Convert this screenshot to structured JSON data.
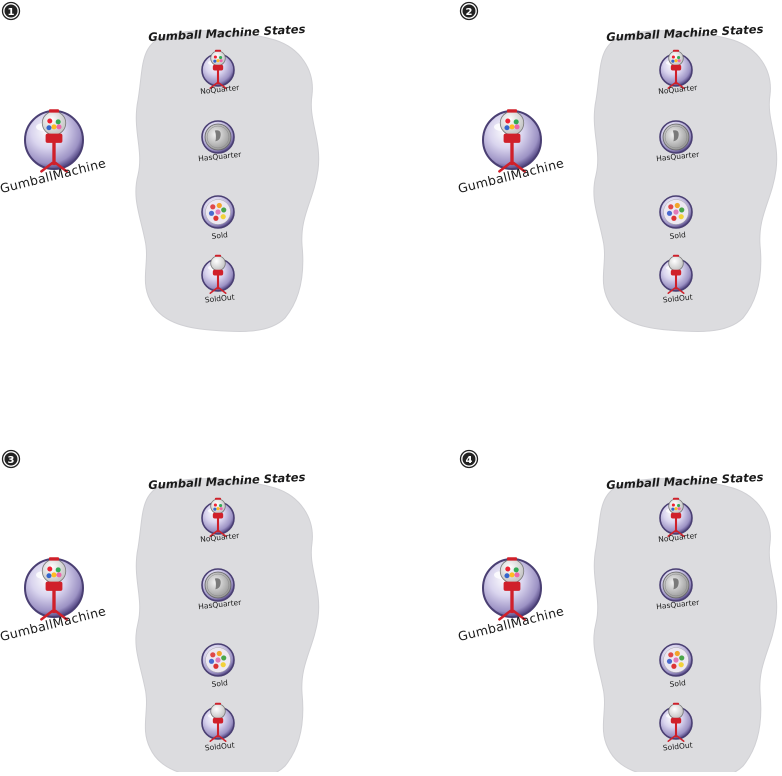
{
  "panels": [
    {
      "number": "1",
      "machine_label": "GumballMachine",
      "states_title": "Gumball Machine States",
      "states": [
        {
          "label": "NoQuarter",
          "icon": "gumball-machine-icon"
        },
        {
          "label": "HasQuarter",
          "icon": "quarter-coin-icon"
        },
        {
          "label": "Sold",
          "icon": "gumballs-icon"
        },
        {
          "label": "SoldOut",
          "icon": "empty-gumball-machine-icon"
        }
      ]
    },
    {
      "number": "2",
      "machine_label": "GumballMachine",
      "states_title": "Gumball Machine States",
      "states": [
        {
          "label": "NoQuarter",
          "icon": "gumball-machine-icon"
        },
        {
          "label": "HasQuarter",
          "icon": "quarter-coin-icon"
        },
        {
          "label": "Sold",
          "icon": "gumballs-icon"
        },
        {
          "label": "SoldOut",
          "icon": "empty-gumball-machine-icon"
        }
      ]
    },
    {
      "number": "3",
      "machine_label": "GumballMachine",
      "states_title": "Gumball Machine States",
      "states": [
        {
          "label": "NoQuarter",
          "icon": "gumball-machine-icon"
        },
        {
          "label": "HasQuarter",
          "icon": "quarter-coin-icon"
        },
        {
          "label": "Sold",
          "icon": "gumballs-icon"
        },
        {
          "label": "SoldOut",
          "icon": "empty-gumball-machine-icon"
        }
      ]
    },
    {
      "number": "4",
      "machine_label": "GumballMachine",
      "states_title": "Gumball Machine States",
      "states": [
        {
          "label": "NoQuarter",
          "icon": "gumball-machine-icon"
        },
        {
          "label": "HasQuarter",
          "icon": "quarter-coin-icon"
        },
        {
          "label": "Sold",
          "icon": "gumballs-icon"
        },
        {
          "label": "SoldOut",
          "icon": "empty-gumball-machine-icon"
        }
      ]
    }
  ],
  "colors": {
    "blob_fill": "#dcdcdf",
    "orb_fill": "#c9c3e0",
    "orb_stroke": "#4a3f73",
    "machine_red": "#d0202a",
    "text": "#1a1a1a"
  }
}
